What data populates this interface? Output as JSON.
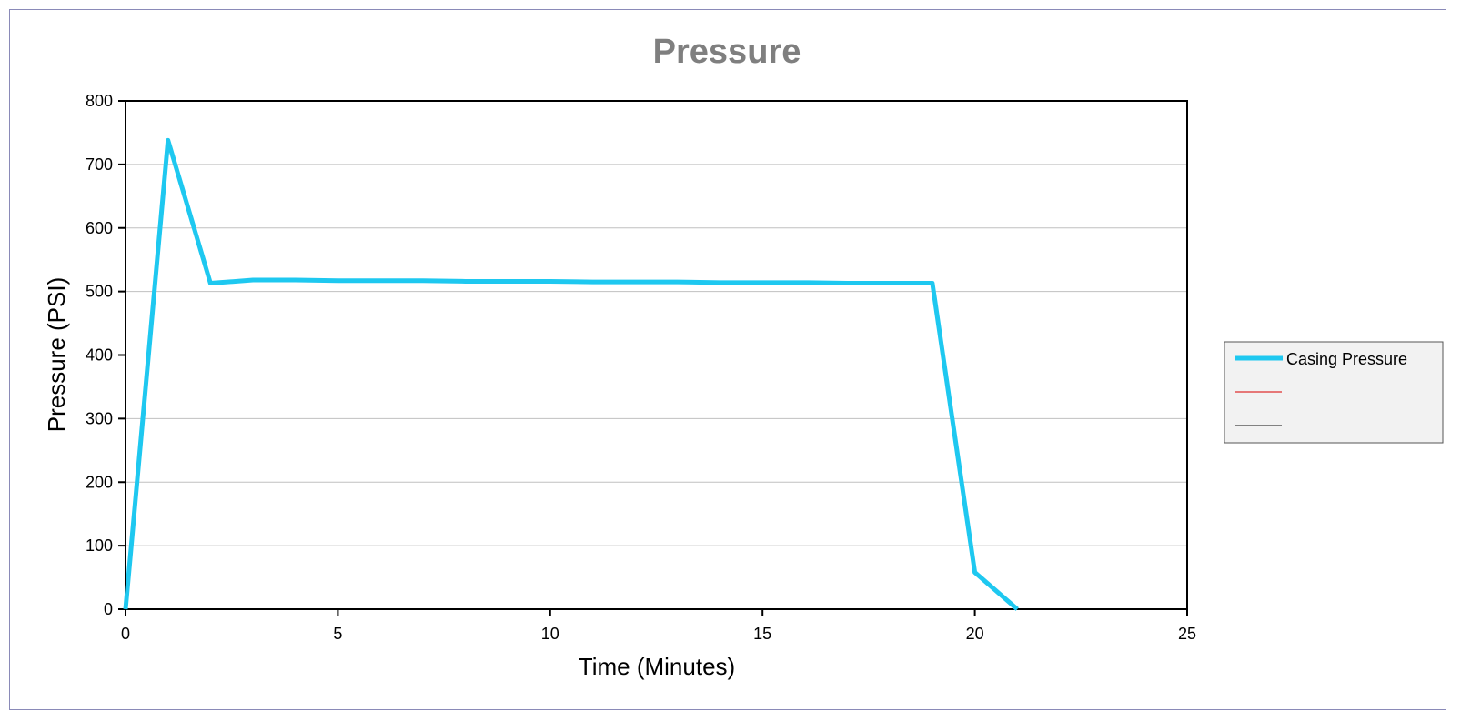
{
  "colors": {
    "series_casing": "#1ec8f0",
    "legend_red": "#e03030",
    "legend_dark": "#404040",
    "title": "#7f7f7f",
    "grid": "#c0c0c0",
    "frame_border": "#8a8ab8",
    "legend_bg": "#f2f2f2"
  },
  "chart_data": {
    "type": "line",
    "title": "Pressure",
    "xlabel": "Time (Minutes)",
    "ylabel": "Pressure (PSI)",
    "xlim": [
      0,
      25
    ],
    "ylim": [
      0,
      800
    ],
    "x_ticks": [
      0,
      5,
      10,
      15,
      20,
      25
    ],
    "y_ticks": [
      0,
      100,
      200,
      300,
      400,
      500,
      600,
      700,
      800
    ],
    "grid": "horizontal",
    "legend_position": "right",
    "series": [
      {
        "name": "Casing Pressure",
        "x": [
          0,
          1,
          2,
          3,
          4,
          5,
          6,
          7,
          8,
          9,
          10,
          11,
          12,
          13,
          14,
          15,
          16,
          17,
          18,
          19,
          20,
          21
        ],
        "y": [
          0,
          738,
          513,
          518,
          518,
          517,
          517,
          517,
          516,
          516,
          516,
          515,
          515,
          515,
          514,
          514,
          514,
          513,
          513,
          513,
          58,
          0
        ]
      },
      {
        "name": "",
        "x": [],
        "y": []
      },
      {
        "name": "",
        "x": [],
        "y": []
      }
    ]
  }
}
